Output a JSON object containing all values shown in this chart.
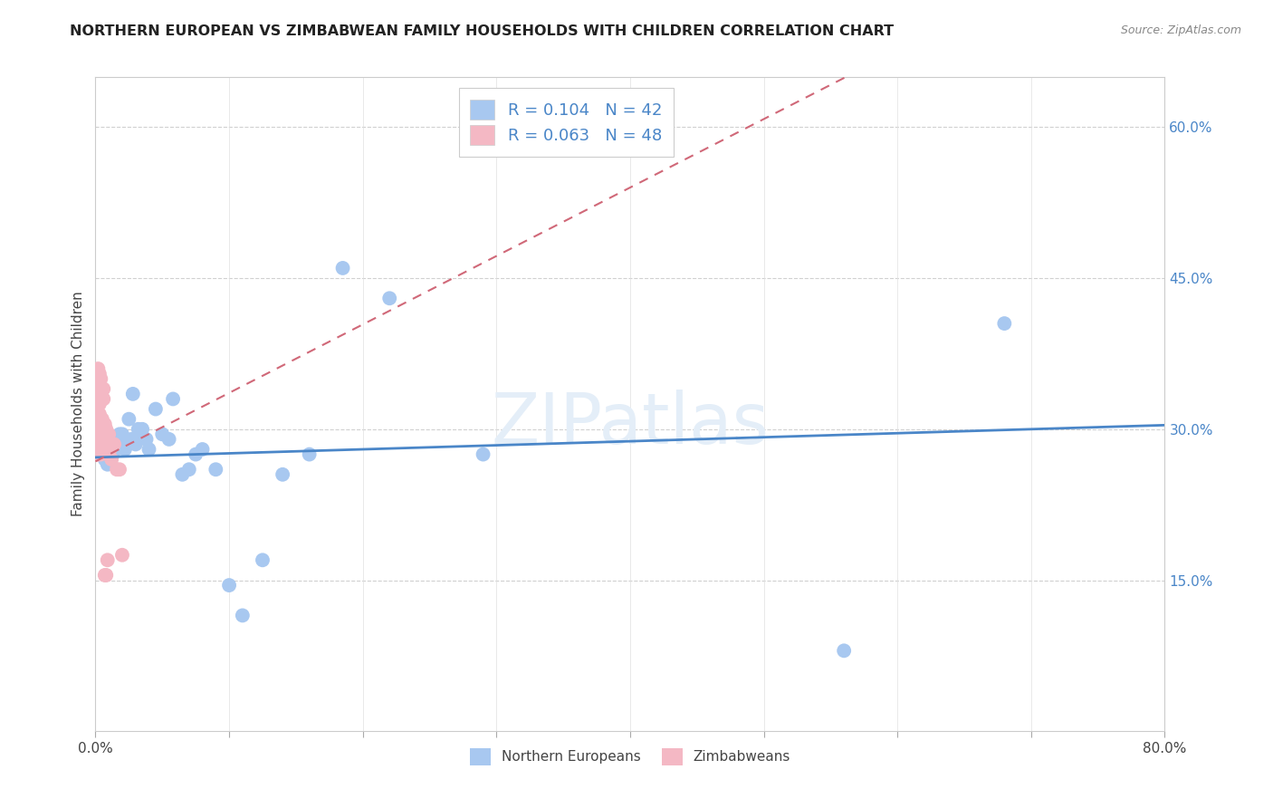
{
  "title": "NORTHERN EUROPEAN VS ZIMBABWEAN FAMILY HOUSEHOLDS WITH CHILDREN CORRELATION CHART",
  "source": "Source: ZipAtlas.com",
  "ylabel": "Family Households with Children",
  "xlim": [
    0.0,
    0.8
  ],
  "ylim": [
    0.0,
    0.65
  ],
  "blue_color": "#a8c8f0",
  "pink_color": "#f4b8c4",
  "blue_line_color": "#4a86c8",
  "pink_line_color": "#d06878",
  "watermark": "ZIPatlas",
  "blue_R": 0.104,
  "blue_N": 42,
  "pink_R": 0.063,
  "pink_N": 48,
  "blue_intercept": 0.272,
  "blue_slope": 0.04,
  "pink_intercept": 0.268,
  "pink_slope": 0.68,
  "northern_europeans_x": [
    0.005,
    0.007,
    0.008,
    0.009,
    0.01,
    0.011,
    0.012,
    0.013,
    0.015,
    0.016,
    0.018,
    0.02,
    0.02,
    0.022,
    0.025,
    0.027,
    0.028,
    0.03,
    0.032,
    0.033,
    0.035,
    0.038,
    0.04,
    0.045,
    0.05,
    0.055,
    0.058,
    0.065,
    0.07,
    0.075,
    0.08,
    0.09,
    0.1,
    0.11,
    0.125,
    0.14,
    0.16,
    0.185,
    0.22,
    0.29,
    0.56,
    0.68
  ],
  "northern_europeans_y": [
    0.275,
    0.27,
    0.28,
    0.265,
    0.275,
    0.27,
    0.28,
    0.275,
    0.28,
    0.285,
    0.295,
    0.285,
    0.295,
    0.28,
    0.31,
    0.29,
    0.335,
    0.285,
    0.3,
    0.295,
    0.3,
    0.29,
    0.28,
    0.32,
    0.295,
    0.29,
    0.33,
    0.255,
    0.26,
    0.275,
    0.28,
    0.26,
    0.145,
    0.115,
    0.17,
    0.255,
    0.275,
    0.46,
    0.43,
    0.275,
    0.08,
    0.405
  ],
  "zimbabweans_x": [
    0.001,
    0.001,
    0.001,
    0.002,
    0.002,
    0.002,
    0.002,
    0.002,
    0.002,
    0.003,
    0.003,
    0.003,
    0.003,
    0.003,
    0.003,
    0.003,
    0.003,
    0.003,
    0.004,
    0.004,
    0.004,
    0.004,
    0.004,
    0.004,
    0.004,
    0.005,
    0.005,
    0.005,
    0.005,
    0.005,
    0.006,
    0.006,
    0.006,
    0.006,
    0.007,
    0.007,
    0.007,
    0.008,
    0.008,
    0.009,
    0.009,
    0.01,
    0.011,
    0.012,
    0.014,
    0.016,
    0.018,
    0.02
  ],
  "zimbabweans_y": [
    0.28,
    0.29,
    0.275,
    0.3,
    0.285,
    0.275,
    0.36,
    0.345,
    0.33,
    0.295,
    0.31,
    0.285,
    0.34,
    0.325,
    0.315,
    0.355,
    0.345,
    0.335,
    0.295,
    0.305,
    0.285,
    0.275,
    0.35,
    0.34,
    0.33,
    0.31,
    0.29,
    0.28,
    0.34,
    0.33,
    0.3,
    0.285,
    0.34,
    0.33,
    0.305,
    0.285,
    0.155,
    0.3,
    0.155,
    0.17,
    0.285,
    0.295,
    0.28,
    0.27,
    0.285,
    0.26,
    0.26,
    0.175
  ]
}
